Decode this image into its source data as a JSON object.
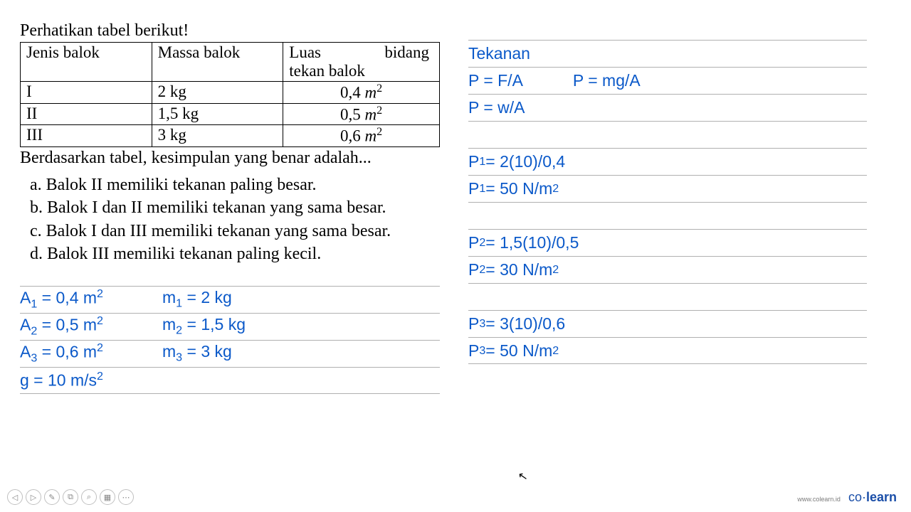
{
  "intro": "Perhatikan tabel berikut!",
  "table": {
    "headers": {
      "col1": "Jenis balok",
      "col2": "Massa balok",
      "col3_line1a": "Luas",
      "col3_line1b": "bidang",
      "col3_line2": "tekan balok"
    },
    "rows": [
      {
        "jenis": "I",
        "massa": "2 kg",
        "luas_val": "0,4",
        "luas_unit": "m",
        "luas_sup": "2"
      },
      {
        "jenis": "II",
        "massa": "1,5 kg",
        "luas_val": "0,5",
        "luas_unit": "m",
        "luas_sup": "2"
      },
      {
        "jenis": "III",
        "massa": "3 kg",
        "luas_val": "0,6",
        "luas_unit": "m",
        "luas_sup": "2"
      }
    ]
  },
  "conclusion": "Berdasarkan tabel, kesimpulan yang benar adalah...",
  "options": {
    "a": "a. Balok II memiliki tekanan paling besar.",
    "b": "b. Balok I dan II memiliki tekanan yang sama besar.",
    "c": "c. Balok I dan III memiliki tekanan yang sama besar.",
    "d": "d. Balok III memiliki tekanan paling kecil."
  },
  "given": [
    {
      "a_pre": "A",
      "a_sub": "1",
      "a_post": " = 0,4 m",
      "a_sup": "2",
      "b_pre": "m",
      "b_sub": "1",
      "b_post": " = 2 kg"
    },
    {
      "a_pre": "A",
      "a_sub": "2",
      "a_post": " = 0,5 m",
      "a_sup": "2",
      "b_pre": "m",
      "b_sub": "2",
      "b_post": " = 1,5 kg"
    },
    {
      "a_pre": "A",
      "a_sub": "3",
      "a_post": " = 0,6 m",
      "a_sup": "2",
      "b_pre": "m",
      "b_sub": "3",
      "b_post": " = 3 kg"
    },
    {
      "a_pre": "g = 10 m/s",
      "a_sub": "",
      "a_post": "",
      "a_sup": "2",
      "b_pre": "",
      "b_sub": "",
      "b_post": ""
    }
  ],
  "right": {
    "title": "Tekanan",
    "formula1a": "P = F/A",
    "formula1b": "P = mg/A",
    "formula2": "P = w/A",
    "calc": [
      {
        "pre": "P",
        "sub": "1",
        "post": " = 2(10)/0,4",
        "sup": ""
      },
      {
        "pre": "P",
        "sub": "1",
        "post": " = 50 N/m",
        "sup": "2"
      },
      {
        "pre": "",
        "sub": "",
        "post": "",
        "sup": ""
      },
      {
        "pre": "P",
        "sub": "2",
        "post": " = 1,5(10)/0,5",
        "sup": ""
      },
      {
        "pre": "P",
        "sub": "2",
        "post": " = 30 N/m",
        "sup": "2"
      },
      {
        "pre": "",
        "sub": "",
        "post": "",
        "sup": ""
      },
      {
        "pre": "P",
        "sub": "3",
        "post": " = 3(10)/0,6",
        "sup": ""
      },
      {
        "pre": "P",
        "sub": "3",
        "post": " = 50 N/m",
        "sup": "2"
      }
    ]
  },
  "brand": {
    "url": "www.colearn.id",
    "name1": "co·",
    "name2": "learn"
  },
  "colors": {
    "handwriting": "#0b59c9",
    "rule": "#b0b0b0",
    "text": "#000000",
    "brand": "#1a4ea8"
  },
  "fontsize": {
    "body": 24,
    "table": 23,
    "lines": 23,
    "brand": 18
  }
}
